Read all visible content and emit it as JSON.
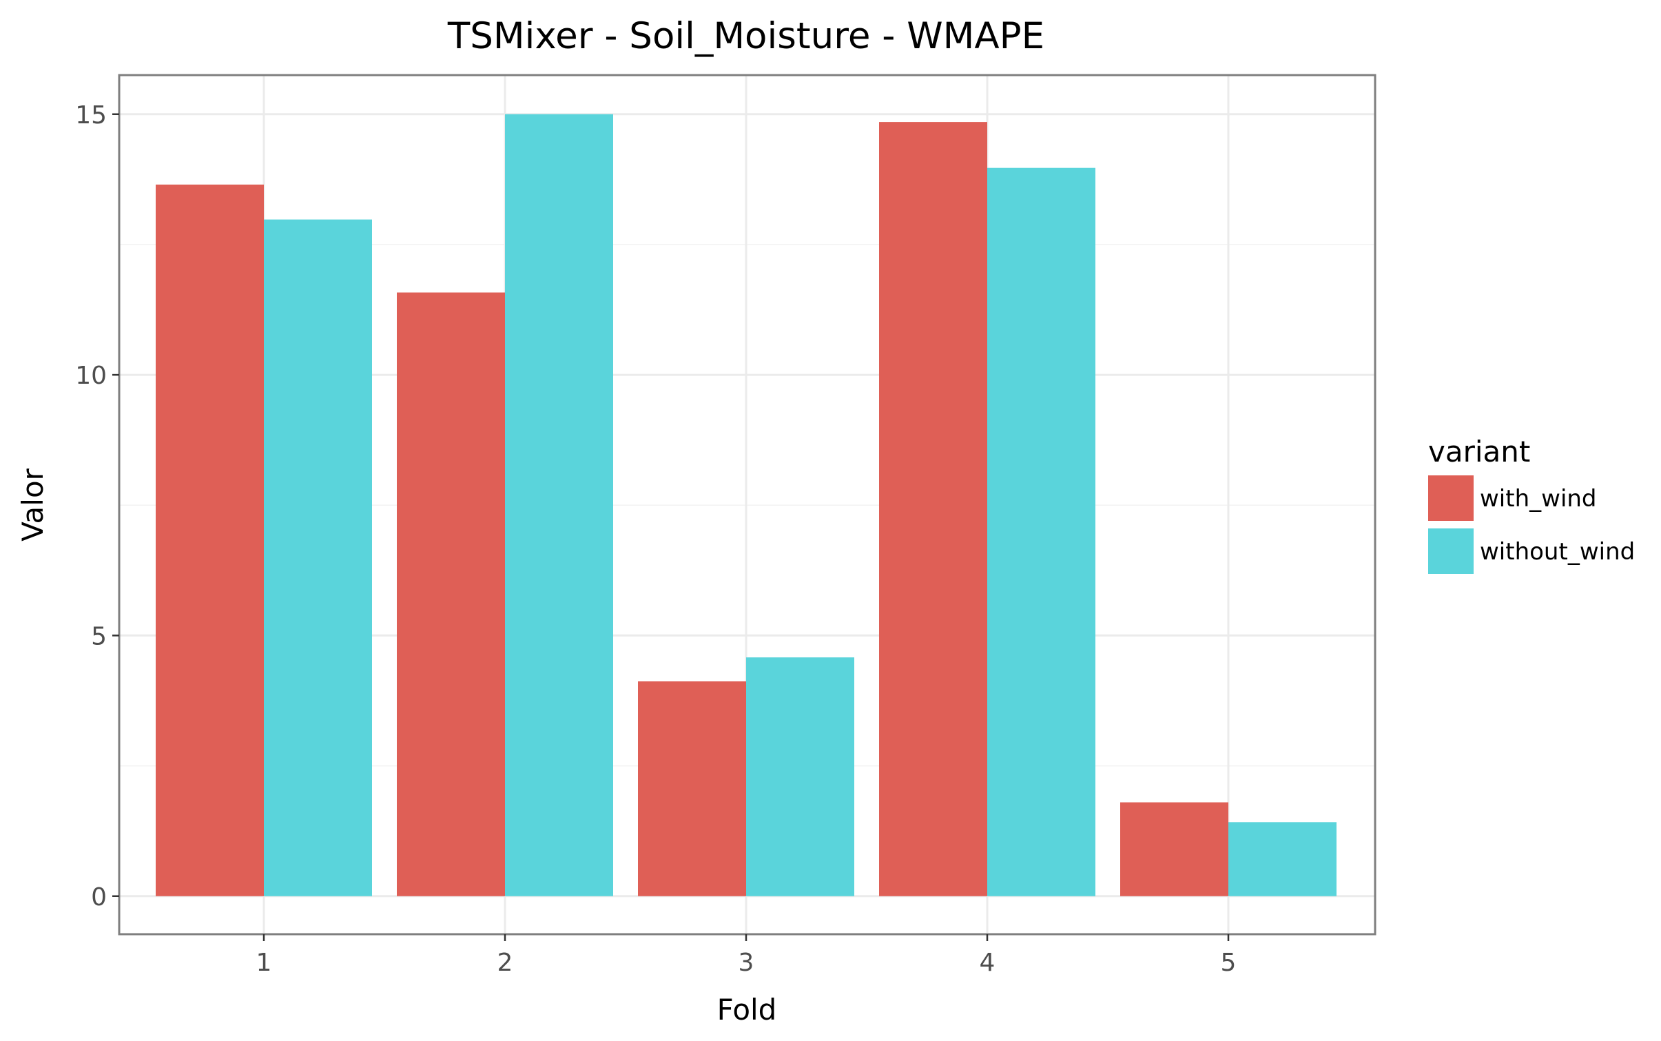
{
  "chart_data": {
    "type": "bar",
    "title": "TSMixer - Soil_Moisture - WMAPE",
    "xlabel": "Fold",
    "ylabel": "Valor",
    "categories": [
      "1",
      "2",
      "3",
      "4",
      "5"
    ],
    "series": [
      {
        "name": "with_wind",
        "color": "#df5f56",
        "values": [
          13.65,
          11.58,
          4.12,
          14.85,
          1.8
        ]
      },
      {
        "name": "without_wind",
        "color": "#5ad4db",
        "values": [
          12.98,
          15.0,
          4.58,
          13.97,
          1.42
        ]
      }
    ],
    "ylim": [
      -0.73,
      15.75
    ],
    "yticks": [
      0,
      5,
      10,
      15
    ],
    "grid": true,
    "legend": {
      "title": "variant",
      "position": "right"
    }
  }
}
